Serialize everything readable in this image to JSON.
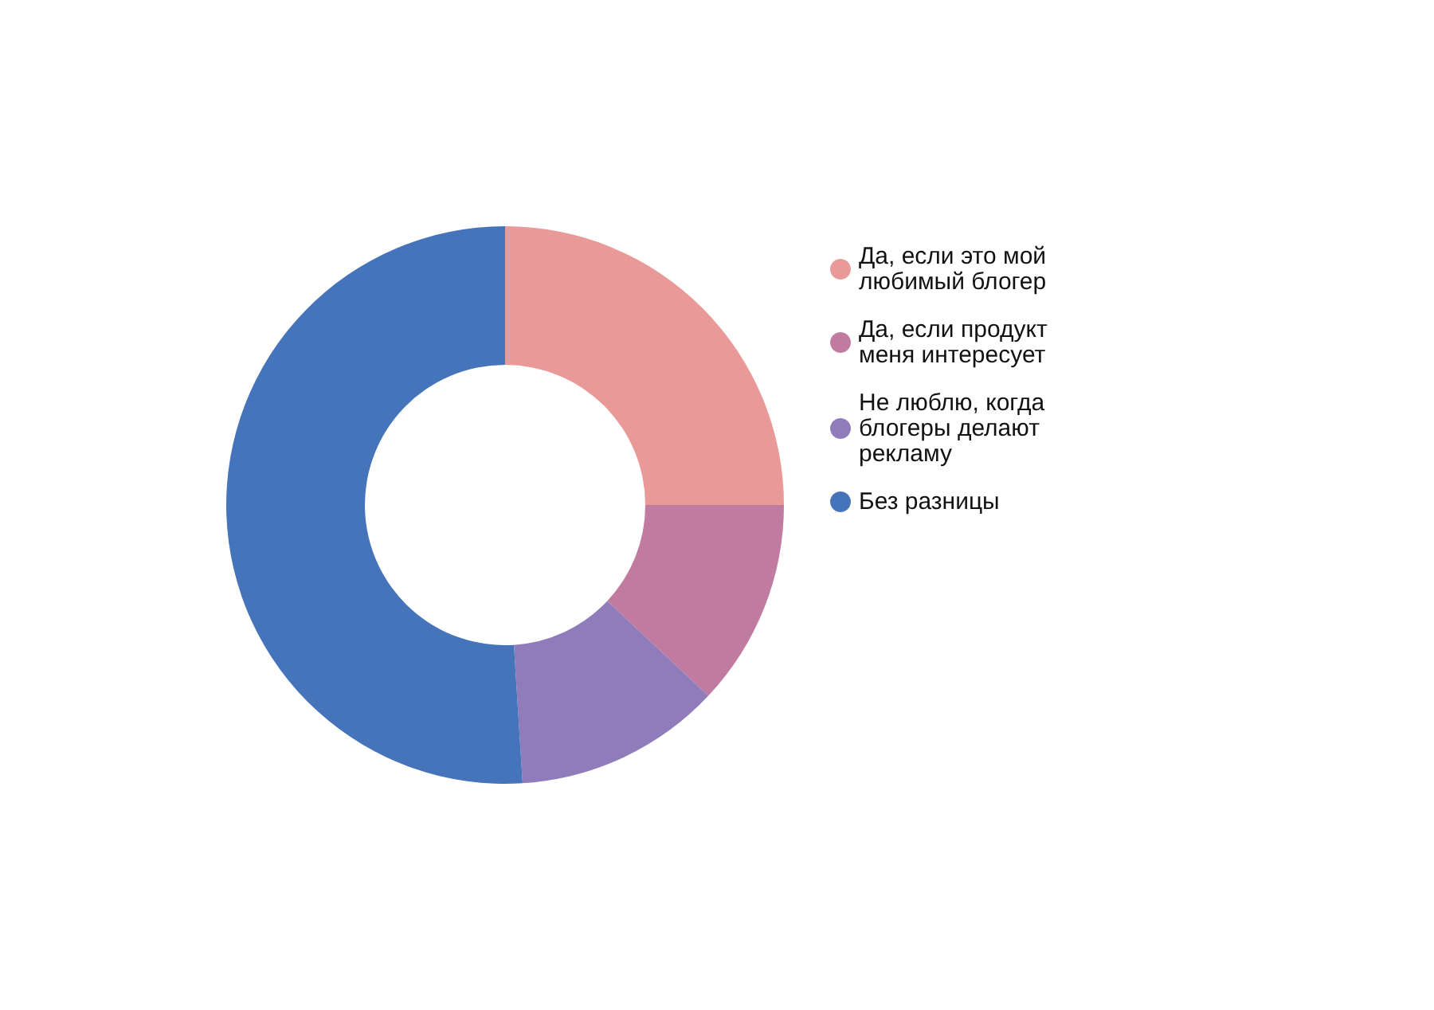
{
  "chart_data": {
    "type": "donut",
    "categories": [
      "Да, если это мой любимый блогер",
      "Да, если продукт меня интересует",
      "Не люблю, когда блогеры делают рекламу",
      "Без разницы"
    ],
    "values": [
      25,
      12,
      12,
      51
    ],
    "colors": [
      "#e99a98",
      "#c17aa0",
      "#907cba",
      "#4574ba"
    ],
    "legend": "right"
  }
}
